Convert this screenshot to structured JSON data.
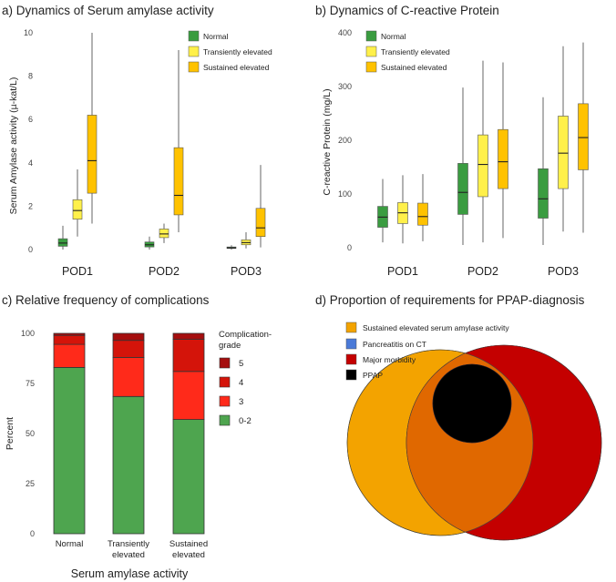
{
  "chart_data": [
    {
      "panel": "a",
      "type": "boxplot",
      "title": "a) Dynamics of Serum amylase activity",
      "ylabel": "Serum Amylase activity (µ-kat/L)",
      "xlabel": "",
      "ylim": [
        0,
        10
      ],
      "yticks": [
        0,
        2,
        4,
        6,
        8,
        10
      ],
      "categories": [
        "POD1",
        "POD2",
        "POD3"
      ],
      "series": [
        {
          "name": "Normal",
          "color": "#3a9c40",
          "boxes": [
            {
              "min": 0.0,
              "q1": 0.15,
              "median": 0.3,
              "q3": 0.5,
              "max": 1.1
            },
            {
              "min": 0.0,
              "q1": 0.12,
              "median": 0.22,
              "q3": 0.35,
              "max": 0.6
            },
            {
              "min": 0.0,
              "q1": 0.05,
              "median": 0.08,
              "q3": 0.12,
              "max": 0.2
            }
          ]
        },
        {
          "name": "Transiently elevated",
          "color": "#fff04a",
          "boxes": [
            {
              "min": 0.6,
              "q1": 1.4,
              "median": 1.8,
              "q3": 2.3,
              "max": 3.7
            },
            {
              "min": 0.3,
              "q1": 0.55,
              "median": 0.72,
              "q3": 0.95,
              "max": 1.2
            },
            {
              "min": 0.05,
              "q1": 0.22,
              "median": 0.32,
              "q3": 0.45,
              "max": 0.8
            }
          ]
        },
        {
          "name": "Sustained elevated",
          "color": "#ffc200",
          "boxes": [
            {
              "min": 1.2,
              "q1": 2.6,
              "median": 4.1,
              "q3": 6.2,
              "max": 10.0
            },
            {
              "min": 0.8,
              "q1": 1.6,
              "median": 2.5,
              "q3": 4.7,
              "max": 9.2
            },
            {
              "min": 0.1,
              "q1": 0.6,
              "median": 1.0,
              "q3": 1.9,
              "max": 3.9
            }
          ]
        }
      ]
    },
    {
      "panel": "b",
      "type": "boxplot",
      "title": "b) Dynamics of C-reactive Protein",
      "ylabel": "C-reactive Protein (mg/L)",
      "xlabel": "",
      "ylim": [
        0,
        400
      ],
      "yticks": [
        0,
        100,
        200,
        300,
        400
      ],
      "categories": [
        "POD1",
        "POD2",
        "POD3"
      ],
      "series": [
        {
          "name": "Normal",
          "color": "#3a9c40",
          "boxes": [
            {
              "min": 10,
              "q1": 38,
              "median": 57,
              "q3": 77,
              "max": 128
            },
            {
              "min": 5,
              "q1": 62,
              "median": 103,
              "q3": 157,
              "max": 298
            },
            {
              "min": 5,
              "q1": 55,
              "median": 91,
              "q3": 147,
              "max": 280
            }
          ]
        },
        {
          "name": "Transiently elevated",
          "color": "#fff04a",
          "boxes": [
            {
              "min": 8,
              "q1": 45,
              "median": 65,
              "q3": 84,
              "max": 135
            },
            {
              "min": 10,
              "q1": 95,
              "median": 155,
              "q3": 210,
              "max": 348
            },
            {
              "min": 30,
              "q1": 110,
              "median": 176,
              "q3": 245,
              "max": 375
            }
          ]
        },
        {
          "name": "Sustained elevated",
          "color": "#ffc200",
          "boxes": [
            {
              "min": 12,
              "q1": 42,
              "median": 58,
              "q3": 83,
              "max": 137
            },
            {
              "min": 18,
              "q1": 110,
              "median": 160,
              "q3": 220,
              "max": 345
            },
            {
              "min": 28,
              "q1": 145,
              "median": 205,
              "q3": 268,
              "max": 382
            }
          ]
        }
      ]
    },
    {
      "panel": "c",
      "type": "stacked-bar",
      "title": "c) Relative frequency of complications",
      "ylabel": "Percent",
      "xlabel": "Serum amylase activity",
      "ylim": [
        0,
        100
      ],
      "yticks": [
        0,
        25,
        50,
        75,
        100
      ],
      "categories": [
        [
          "Normal"
        ],
        [
          "Transiently",
          "elevated"
        ],
        [
          "Sustained",
          "elevated"
        ]
      ],
      "legend_title": "Complication-grade",
      "series": [
        {
          "name": "0-2",
          "color": "#4ea54f",
          "values": [
            83,
            68.5,
            57
          ]
        },
        {
          "name": "3",
          "color": "#ff2a1a",
          "values": [
            11.5,
            19.5,
            24
          ]
        },
        {
          "name": "4",
          "color": "#d4140a",
          "values": [
            4.5,
            8.5,
            16
          ]
        },
        {
          "name": "5",
          "color": "#a50e0e",
          "values": [
            1,
            3.5,
            3
          ]
        }
      ]
    },
    {
      "panel": "d",
      "type": "venn",
      "title": "d) Proportion of requirements for PPAP-diagnosis",
      "sets": [
        {
          "name": "Sustained elevated serum amylase activity",
          "color": "#f3a300"
        },
        {
          "name": "Pancreatitis on CT",
          "color": "#2530f5"
        },
        {
          "name": "Major morbidity",
          "color": "#c40000"
        },
        {
          "name": "PPAP",
          "color": "#000000"
        }
      ]
    }
  ]
}
